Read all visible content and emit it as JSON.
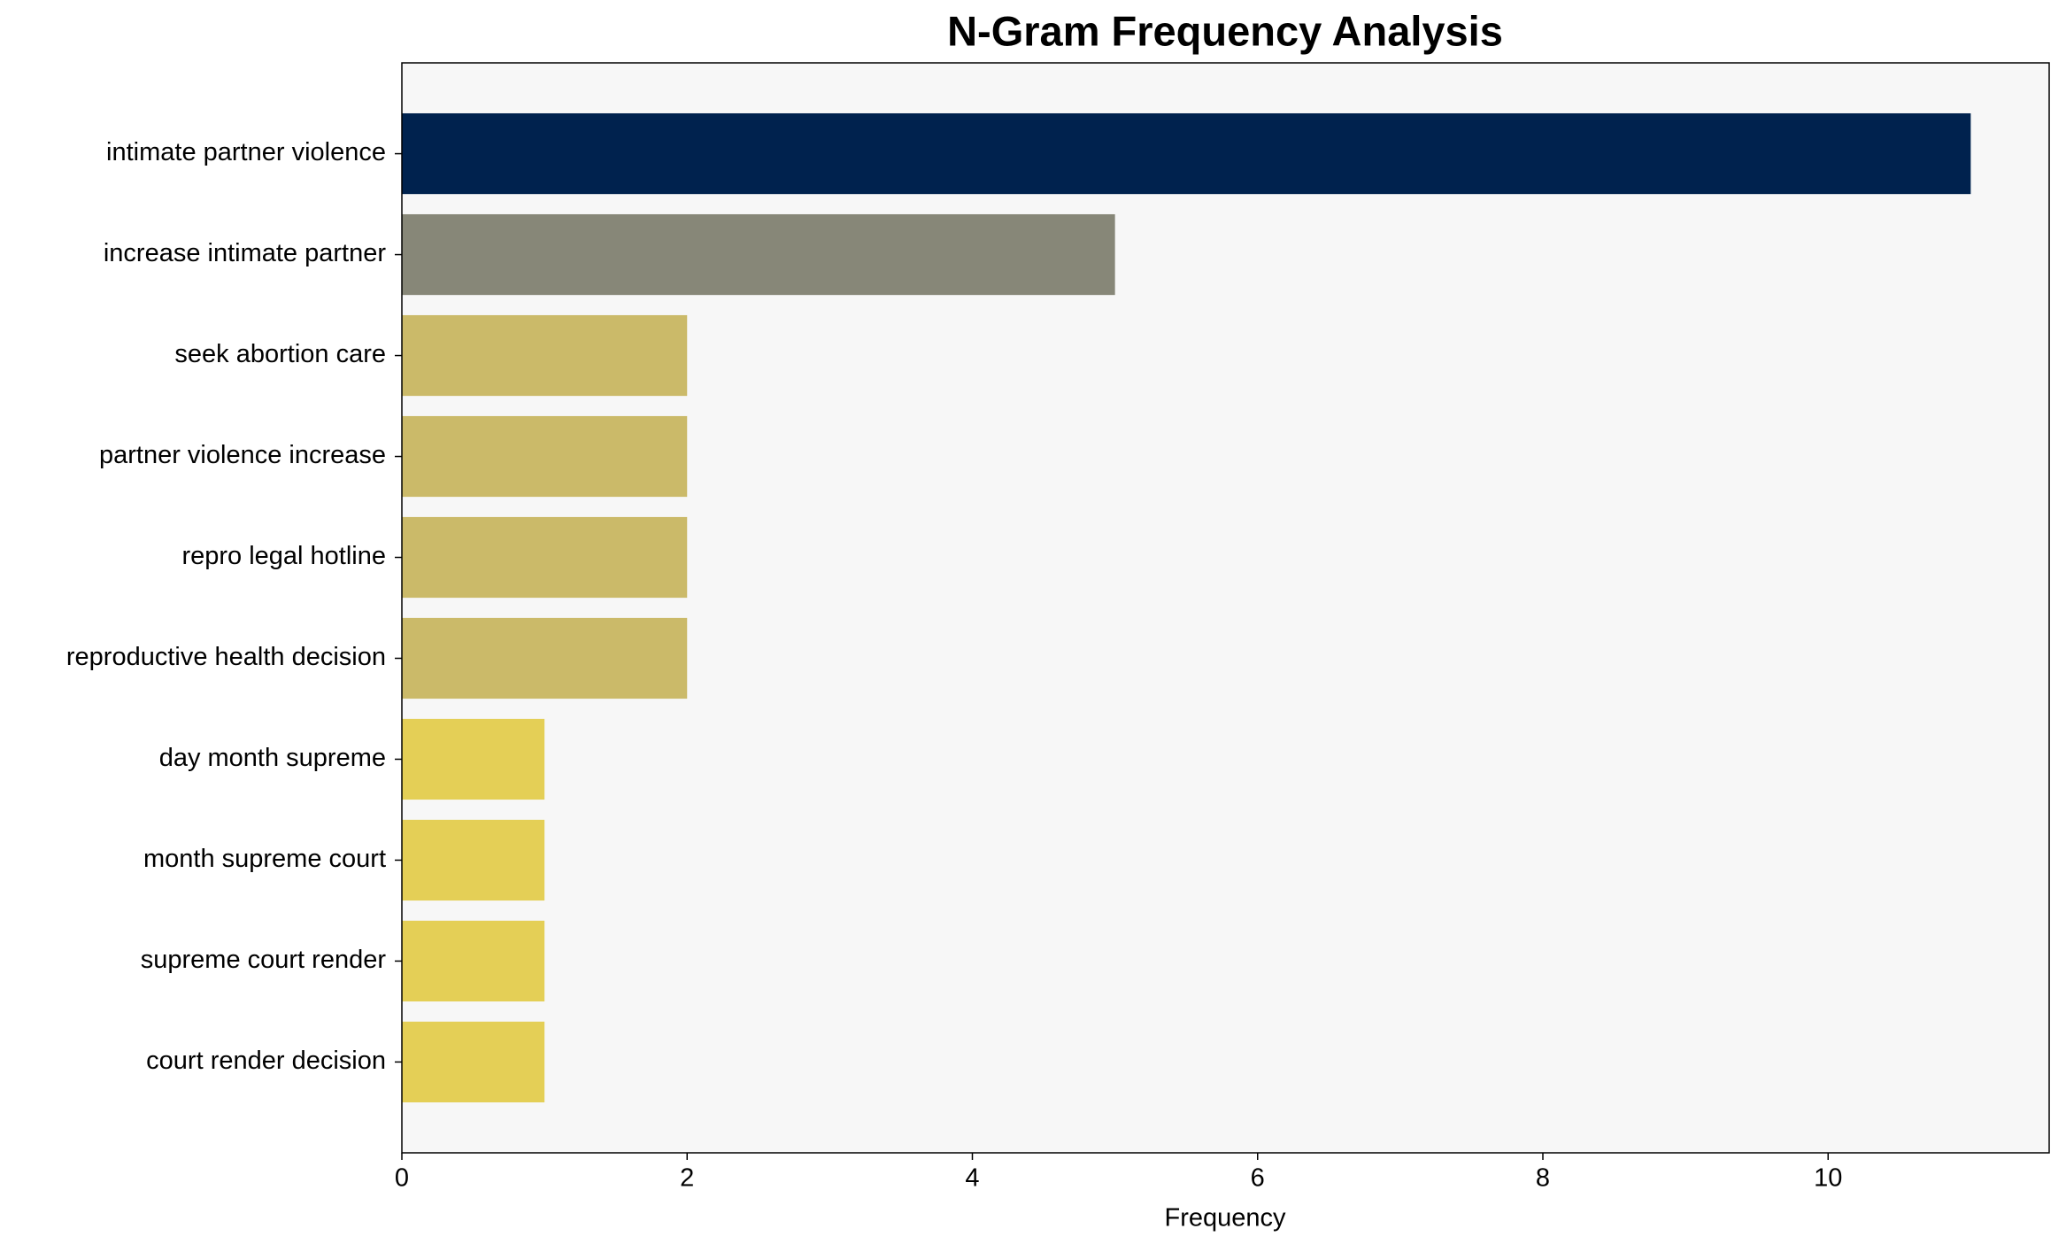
{
  "chart_data": {
    "type": "barh",
    "title": "N-Gram Frequency Analysis",
    "x_label": "Frequency",
    "categories": [
      "intimate partner violence",
      "increase intimate partner",
      "seek abortion care",
      "partner violence increase",
      "repro legal hotline",
      "reproductive health decision",
      "day month supreme",
      "month supreme court",
      "supreme court render",
      "court render decision"
    ],
    "values": [
      11,
      5,
      2,
      2,
      2,
      2,
      1,
      1,
      1,
      1
    ],
    "colors": [
      "#00224e",
      "#878778",
      "#cbba69",
      "#cbba69",
      "#cbba69",
      "#cbba69",
      "#e4cf56",
      "#e4cf56",
      "#e4cf56",
      "#e4cf56"
    ],
    "xlim": [
      0,
      11.55
    ],
    "xticks": [
      0,
      2,
      4,
      6,
      8,
      10
    ],
    "grid": false
  }
}
